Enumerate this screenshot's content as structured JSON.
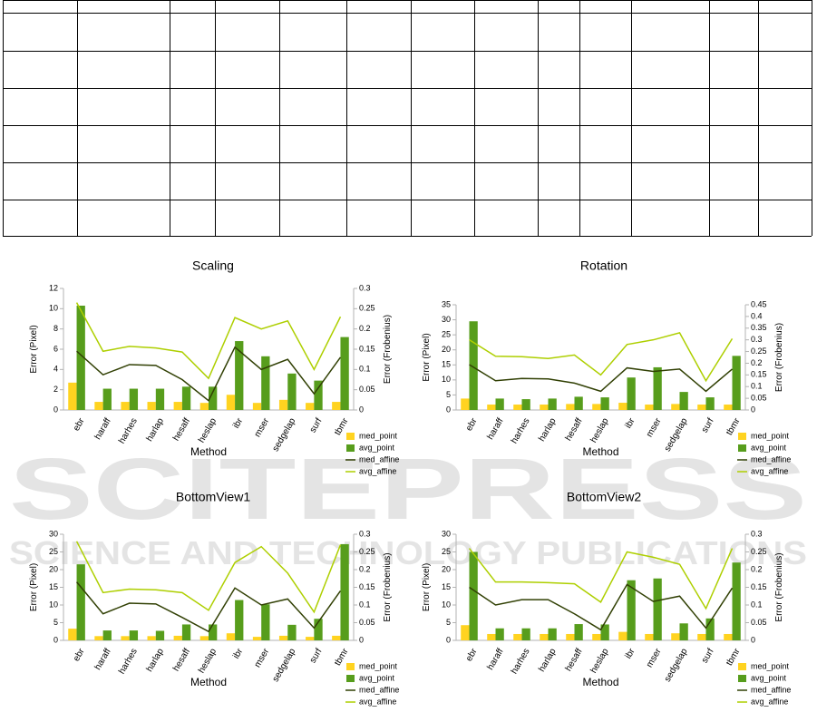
{
  "watermark": {
    "title": "SCITEPRESS",
    "subtitle": "SCIENCE AND TECHNOLOGY PUBLICATIONS"
  },
  "chart_data": [
    {
      "type": "bar",
      "title": "Scaling",
      "x_label": "Method",
      "y_label": "Error (Pixel)",
      "y2_label": "Error (Frobenius)",
      "categories": [
        "ebr",
        "haraff",
        "harhes",
        "harlap",
        "hesaff",
        "heslap",
        "ibr",
        "mser",
        "sedgelap",
        "surf",
        "tbmr"
      ],
      "ylim": [
        0,
        12
      ],
      "yticks": [
        0,
        2,
        4,
        6,
        8,
        10,
        12
      ],
      "y2lim": [
        0,
        0.3
      ],
      "y2ticks": [
        0,
        0.05,
        0.1,
        0.15,
        0.2,
        0.25,
        0.3
      ],
      "legend": "bottom-right",
      "series": [
        {
          "name": "med_point",
          "type": "bar",
          "color": "#ffd320",
          "values": [
            2.7,
            0.8,
            0.8,
            0.8,
            0.8,
            0.7,
            1.5,
            0.7,
            1.0,
            0.7,
            0.8
          ]
        },
        {
          "name": "avg_point",
          "type": "bar",
          "color": "#579d1c",
          "values": [
            10.3,
            2.1,
            2.1,
            2.1,
            2.3,
            2.3,
            6.8,
            5.3,
            3.6,
            2.9,
            7.2
          ]
        },
        {
          "name": "med_affine",
          "type": "line",
          "axis": "y2",
          "color": "#314004",
          "values": [
            0.145,
            0.087,
            0.112,
            0.11,
            0.075,
            0.023,
            0.155,
            0.1,
            0.125,
            0.04,
            0.13
          ]
        },
        {
          "name": "avg_affine",
          "type": "line",
          "axis": "y2",
          "color": "#aecf00",
          "values": [
            0.265,
            0.145,
            0.157,
            0.153,
            0.143,
            0.078,
            0.228,
            0.2,
            0.22,
            0.1,
            0.23
          ]
        }
      ]
    },
    {
      "type": "bar",
      "title": "Rotation",
      "x_label": "Method",
      "y_label": "Error (Pixel)",
      "y2_label": "Error (Frobenius)",
      "categories": [
        "ebr",
        "haraff",
        "harhes",
        "harlap",
        "hesaff",
        "heslap",
        "ibr",
        "mser",
        "sedgelap",
        "surf",
        "tbmr"
      ],
      "ylim": [
        0,
        35
      ],
      "yticks": [
        0,
        5,
        10,
        15,
        20,
        25,
        30,
        35
      ],
      "y2lim": [
        0,
        0.45
      ],
      "y2ticks": [
        0,
        0.05,
        0.1,
        0.15,
        0.2,
        0.25,
        0.3,
        0.35,
        0.4,
        0.45
      ],
      "legend": "bottom-right",
      "series": [
        {
          "name": "med_point",
          "type": "bar",
          "color": "#ffd320",
          "values": [
            3.8,
            1.8,
            1.8,
            1.8,
            2,
            2,
            2.4,
            1.8,
            2,
            1.8,
            1.8
          ]
        },
        {
          "name": "avg_point",
          "type": "bar",
          "color": "#579d1c",
          "values": [
            29.5,
            3.8,
            3.6,
            3.8,
            4.4,
            4.2,
            10.8,
            14.2,
            6,
            4.2,
            18
          ]
        },
        {
          "name": "med_affine",
          "type": "line",
          "axis": "y2",
          "color": "#314004",
          "values": [
            0.194,
            0.125,
            0.135,
            0.133,
            0.115,
            0.08,
            0.18,
            0.165,
            0.175,
            0.08,
            0.175
          ]
        },
        {
          "name": "avg_affine",
          "type": "line",
          "axis": "y2",
          "color": "#aecf00",
          "values": [
            0.3,
            0.23,
            0.228,
            0.22,
            0.235,
            0.15,
            0.28,
            0.3,
            0.33,
            0.125,
            0.305
          ]
        }
      ]
    },
    {
      "type": "bar",
      "title": "BottomView1",
      "x_label": "Method",
      "y_label": "Error (Pixel)",
      "y2_label": "Error (Frobenius)",
      "categories": [
        "ebr",
        "haraff",
        "harhes",
        "harlap",
        "hesaff",
        "heslap",
        "ibr",
        "mser",
        "sedgelap",
        "surf",
        "tbmr"
      ],
      "ylim": [
        0,
        30
      ],
      "yticks": [
        0,
        5,
        10,
        15,
        20,
        25,
        30
      ],
      "y2lim": [
        0,
        0.3
      ],
      "y2ticks": [
        0,
        0.05,
        0.1,
        0.15,
        0.2,
        0.25,
        0.3
      ],
      "legend": "bottom-right",
      "series": [
        {
          "name": "med_point",
          "type": "bar",
          "color": "#ffd320",
          "values": [
            3.3,
            1.2,
            1.2,
            1.2,
            1.3,
            1.2,
            2,
            1,
            1.3,
            1,
            1.3
          ]
        },
        {
          "name": "avg_point",
          "type": "bar",
          "color": "#579d1c",
          "values": [
            21.5,
            2.8,
            2.8,
            2.7,
            4.5,
            4.5,
            11.4,
            10.2,
            4.4,
            6.1,
            27.2
          ]
        },
        {
          "name": "med_affine",
          "type": "line",
          "axis": "y2",
          "color": "#314004",
          "values": [
            0.165,
            0.075,
            0.105,
            0.103,
            0.065,
            0.025,
            0.148,
            0.1,
            0.117,
            0.035,
            0.14
          ]
        },
        {
          "name": "avg_affine",
          "type": "line",
          "axis": "y2",
          "color": "#aecf00",
          "values": [
            0.28,
            0.135,
            0.145,
            0.143,
            0.135,
            0.085,
            0.22,
            0.265,
            0.19,
            0.08,
            0.27
          ]
        }
      ]
    },
    {
      "type": "bar",
      "title": "BottomView2",
      "x_label": "Method",
      "y_label": "Error (Pixel)",
      "y2_label": "Error (Frobenius)",
      "categories": [
        "ebr",
        "haraff",
        "harhes",
        "harlap",
        "hesaff",
        "heslap",
        "ibr",
        "mser",
        "sedgelap",
        "surf",
        "tbmr"
      ],
      "ylim": [
        0,
        30
      ],
      "yticks": [
        0,
        5,
        10,
        15,
        20,
        25,
        30
      ],
      "y2lim": [
        0,
        0.3
      ],
      "y2ticks": [
        0,
        0.05,
        0.1,
        0.15,
        0.2,
        0.25,
        0.3
      ],
      "legend": "bottom-right",
      "series": [
        {
          "name": "med_point",
          "type": "bar",
          "color": "#ffd320",
          "values": [
            4.3,
            1.8,
            1.8,
            1.8,
            1.8,
            1.8,
            2.4,
            1.8,
            2,
            1.8,
            1.8
          ]
        },
        {
          "name": "avg_point",
          "type": "bar",
          "color": "#579d1c",
          "values": [
            25,
            3.4,
            3.4,
            3.4,
            4.6,
            4.5,
            17,
            17.5,
            4.8,
            6.2,
            22
          ]
        },
        {
          "name": "med_affine",
          "type": "line",
          "axis": "y2",
          "color": "#314004",
          "values": [
            0.15,
            0.1,
            0.115,
            0.115,
            0.075,
            0.03,
            0.158,
            0.11,
            0.125,
            0.035,
            0.148
          ]
        },
        {
          "name": "avg_affine",
          "type": "line",
          "axis": "y2",
          "color": "#aecf00",
          "values": [
            0.26,
            0.165,
            0.165,
            0.163,
            0.16,
            0.108,
            0.25,
            0.235,
            0.215,
            0.09,
            0.26
          ]
        }
      ]
    }
  ]
}
